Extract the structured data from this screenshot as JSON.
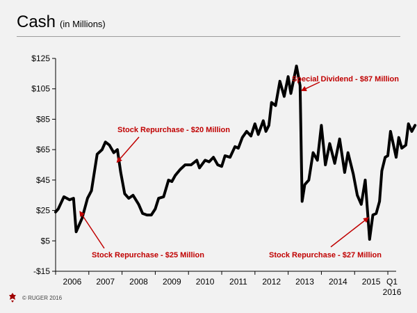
{
  "slide": {
    "title": "Cash",
    "subtitle": "(in Millions)",
    "footer": "© RUGER 2016"
  },
  "chart_data": {
    "type": "line",
    "title": "Cash",
    "subtitle": "(in Millions)",
    "xlabel": "",
    "ylabel": "",
    "ylim": [
      -15,
      125
    ],
    "yticks": [
      -15,
      5,
      25,
      45,
      65,
      85,
      105,
      125
    ],
    "ytick_labels": [
      "-$15",
      "$5",
      "$25",
      "$45",
      "$65",
      "$85",
      "$105",
      "$125"
    ],
    "xlim": [
      2006.0,
      2016.25
    ],
    "xtick_labels": [
      {
        "x": 2006.5,
        "label": "2006"
      },
      {
        "x": 2007.5,
        "label": "2007"
      },
      {
        "x": 2008.5,
        "label": "2008"
      },
      {
        "x": 2009.5,
        "label": "2009"
      },
      {
        "x": 2010.5,
        "label": "2010"
      },
      {
        "x": 2011.5,
        "label": "2011"
      },
      {
        "x": 2012.5,
        "label": "2012"
      },
      {
        "x": 2013.5,
        "label": "2013"
      },
      {
        "x": 2014.5,
        "label": "2014"
      },
      {
        "x": 2015.5,
        "label": "2015"
      },
      {
        "x": 2016.125,
        "label": "Q1\n2016"
      }
    ],
    "grid": false,
    "legend": "none",
    "line_color": "#000000",
    "annotation_color": "#c00000",
    "series": [
      {
        "values": [
          [
            2006.0,
            24
          ],
          [
            2006.08,
            26
          ],
          [
            2006.25,
            34
          ],
          [
            2006.42,
            32
          ],
          [
            2006.54,
            33
          ],
          [
            2006.62,
            11
          ],
          [
            2006.8,
            20
          ],
          [
            2006.96,
            33
          ],
          [
            2007.08,
            38
          ],
          [
            2007.25,
            62
          ],
          [
            2007.4,
            65
          ],
          [
            2007.5,
            70
          ],
          [
            2007.62,
            68
          ],
          [
            2007.75,
            63
          ],
          [
            2007.86,
            65
          ],
          [
            2007.96,
            50
          ],
          [
            2008.08,
            36
          ],
          [
            2008.2,
            33
          ],
          [
            2008.33,
            35
          ],
          [
            2008.5,
            29
          ],
          [
            2008.62,
            23
          ],
          [
            2008.75,
            22
          ],
          [
            2008.88,
            22
          ],
          [
            2009.0,
            26
          ],
          [
            2009.1,
            33
          ],
          [
            2009.25,
            34
          ],
          [
            2009.4,
            45
          ],
          [
            2009.5,
            44
          ],
          [
            2009.6,
            48
          ],
          [
            2009.75,
            52
          ],
          [
            2009.9,
            55
          ],
          [
            2010.08,
            55
          ],
          [
            2010.25,
            58
          ],
          [
            2010.33,
            53
          ],
          [
            2010.5,
            58
          ],
          [
            2010.62,
            57
          ],
          [
            2010.75,
            60
          ],
          [
            2010.88,
            55
          ],
          [
            2011.0,
            54
          ],
          [
            2011.1,
            61
          ],
          [
            2011.25,
            60
          ],
          [
            2011.4,
            67
          ],
          [
            2011.5,
            66
          ],
          [
            2011.62,
            73
          ],
          [
            2011.75,
            77
          ],
          [
            2011.88,
            74
          ],
          [
            2012.0,
            82
          ],
          [
            2012.1,
            75
          ],
          [
            2012.25,
            84
          ],
          [
            2012.33,
            77
          ],
          [
            2012.42,
            81
          ],
          [
            2012.5,
            96
          ],
          [
            2012.62,
            94
          ],
          [
            2012.75,
            110
          ],
          [
            2012.88,
            100
          ],
          [
            2013.0,
            113
          ],
          [
            2013.08,
            102
          ],
          [
            2013.25,
            120
          ],
          [
            2013.36,
            107
          ],
          [
            2013.42,
            31
          ],
          [
            2013.5,
            42
          ],
          [
            2013.62,
            45
          ],
          [
            2013.75,
            63
          ],
          [
            2013.88,
            58
          ],
          [
            2014.0,
            81
          ],
          [
            2014.12,
            55
          ],
          [
            2014.25,
            69
          ],
          [
            2014.4,
            56
          ],
          [
            2014.55,
            72
          ],
          [
            2014.7,
            50
          ],
          [
            2014.8,
            63
          ],
          [
            2014.96,
            49
          ],
          [
            2015.08,
            35
          ],
          [
            2015.2,
            29
          ],
          [
            2015.32,
            45
          ],
          [
            2015.45,
            6
          ],
          [
            2015.55,
            22
          ],
          [
            2015.65,
            23
          ],
          [
            2015.75,
            31
          ],
          [
            2015.82,
            51
          ],
          [
            2015.92,
            60
          ],
          [
            2016.0,
            61
          ],
          [
            2016.08,
            77
          ],
          [
            2016.25,
            60
          ],
          [
            2016.33,
            73
          ],
          [
            2016.42,
            66
          ],
          [
            2016.54,
            68
          ],
          [
            2016.62,
            82
          ],
          [
            2016.72,
            77
          ],
          [
            2016.82,
            81
          ]
        ]
      }
    ],
    "annotations": [
      {
        "text": "Special Dividend - $87 Million",
        "point": [
          2013.42,
          104
        ]
      },
      {
        "text": "Stock Repurchase - $20 Million",
        "point": [
          2007.86,
          57
        ]
      },
      {
        "text": "Stock Repurchase - $25 Million",
        "point": [
          2006.74,
          24
        ]
      },
      {
        "text": "Stock Repurchase - $27 Million",
        "point": [
          2015.4,
          20
        ]
      }
    ]
  }
}
